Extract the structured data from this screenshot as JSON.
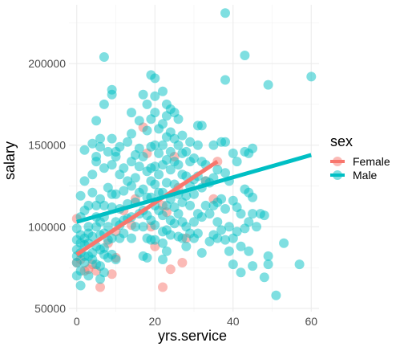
{
  "chart_data": {
    "type": "scatter",
    "title": "",
    "xlabel": "yrs.service",
    "ylabel": "salary",
    "xlim": [
      -2,
      62
    ],
    "ylim": [
      48000,
      236000
    ],
    "x_ticks": [
      0,
      20,
      40,
      60
    ],
    "y_ticks": [
      50000,
      100000,
      150000,
      200000
    ],
    "y_tick_labels": [
      "50000",
      "100000",
      "150000",
      "200000"
    ],
    "x_tick_labels": [
      "0",
      "20",
      "40",
      "60"
    ],
    "grid": true,
    "theme": "minimal",
    "legend": {
      "title": "sex",
      "position": "right",
      "entries": [
        "Female",
        "Male"
      ]
    },
    "colors": {
      "Female": "#F8766D",
      "Male": "#00BFC4"
    },
    "point_opacity": 0.5,
    "series": [
      {
        "name": "Female",
        "points": [
          [
            0,
            105000
          ],
          [
            0,
            78000
          ],
          [
            1,
            80000
          ],
          [
            2,
            73000
          ],
          [
            3,
            74000
          ],
          [
            4,
            77000
          ],
          [
            5,
            73000
          ],
          [
            6,
            63000
          ],
          [
            8,
            90000
          ],
          [
            9,
            71000
          ],
          [
            10,
            97000
          ],
          [
            10,
            81000
          ],
          [
            12,
            110000
          ],
          [
            14,
            101000
          ],
          [
            15,
            117000
          ],
          [
            17,
            161000
          ],
          [
            18,
            145000
          ],
          [
            19,
            100000
          ],
          [
            20,
            88000
          ],
          [
            22,
            63000
          ],
          [
            22,
            113000
          ],
          [
            23,
            109000
          ],
          [
            24,
            74000
          ],
          [
            25,
            143000
          ],
          [
            26,
            124000
          ],
          [
            27,
            78000
          ],
          [
            28,
            93000
          ],
          [
            33,
            128000
          ],
          [
            35,
            117000
          ],
          [
            36,
            140000
          ]
        ],
        "fit": {
          "x": [
            0,
            36
          ],
          "y": [
            83000,
            140000
          ]
        }
      },
      {
        "name": "Male",
        "points": [
          [
            0,
            78000
          ],
          [
            0,
            86000
          ],
          [
            0,
            92000
          ],
          [
            0,
            99000
          ],
          [
            0,
            82000
          ],
          [
            0,
            70000
          ],
          [
            1,
            84000
          ],
          [
            1,
            64000
          ],
          [
            1,
            119000
          ],
          [
            1,
            95000
          ],
          [
            1,
            106000
          ],
          [
            1,
            73000
          ],
          [
            1,
            90000
          ],
          [
            2,
            147000
          ],
          [
            2,
            110000
          ],
          [
            2,
            89000
          ],
          [
            2,
            78000
          ],
          [
            2,
            128000
          ],
          [
            2,
            93000
          ],
          [
            2,
            82000
          ],
          [
            3,
            100000
          ],
          [
            3,
            70000
          ],
          [
            3,
            82000
          ],
          [
            3,
            90000
          ],
          [
            3,
            113000
          ],
          [
            3,
            96000
          ],
          [
            4,
            151000
          ],
          [
            4,
            132000
          ],
          [
            4,
            121000
          ],
          [
            4,
            94000
          ],
          [
            4,
            84000
          ],
          [
            4,
            80000
          ],
          [
            5,
            165000
          ],
          [
            5,
            143000
          ],
          [
            5,
            140000
          ],
          [
            5,
            113000
          ],
          [
            5,
            100000
          ],
          [
            5,
            77000
          ],
          [
            5,
            88000
          ],
          [
            5,
            106000
          ],
          [
            6,
            154000
          ],
          [
            6,
            149000
          ],
          [
            6,
            117000
          ],
          [
            6,
            103000
          ],
          [
            6,
            95000
          ],
          [
            6,
            86000
          ],
          [
            6,
            68000
          ],
          [
            6,
            76000
          ],
          [
            7,
            204000
          ],
          [
            7,
            175000
          ],
          [
            7,
            136000
          ],
          [
            7,
            113000
          ],
          [
            7,
            96000
          ],
          [
            7,
            87000
          ],
          [
            7,
            72000
          ],
          [
            7,
            83000
          ],
          [
            7,
            106000
          ],
          [
            8,
            146000
          ],
          [
            8,
            124000
          ],
          [
            8,
            100000
          ],
          [
            8,
            92000
          ],
          [
            8,
            81000
          ],
          [
            9,
            184000
          ],
          [
            9,
            181000
          ],
          [
            9,
            154000
          ],
          [
            9,
            138000
          ],
          [
            9,
            120000
          ],
          [
            9,
            112000
          ],
          [
            9,
            93000
          ],
          [
            9,
            83000
          ],
          [
            10,
            143000
          ],
          [
            10,
            146000
          ],
          [
            10,
            120000
          ],
          [
            10,
            103000
          ],
          [
            10,
            80000
          ],
          [
            11,
            149000
          ],
          [
            11,
            132000
          ],
          [
            11,
            111000
          ],
          [
            11,
            101000
          ],
          [
            11,
            93000
          ],
          [
            12,
            136000
          ],
          [
            12,
            122000
          ],
          [
            12,
            104000
          ],
          [
            12,
            96000
          ],
          [
            13,
            152000
          ],
          [
            13,
            128000
          ],
          [
            13,
            114000
          ],
          [
            13,
            105000
          ],
          [
            14,
            170000
          ],
          [
            14,
            157000
          ],
          [
            14,
            140000
          ],
          [
            14,
            125000
          ],
          [
            14,
            106000
          ],
          [
            14,
            93000
          ],
          [
            15,
            144000
          ],
          [
            15,
            130000
          ],
          [
            15,
            115000
          ],
          [
            15,
            100000
          ],
          [
            16,
            165000
          ],
          [
            16,
            148000
          ],
          [
            16,
            137000
          ],
          [
            16,
            121000
          ],
          [
            16,
            108000
          ],
          [
            17,
            181000
          ],
          [
            17,
            143000
          ],
          [
            17,
            123000
          ],
          [
            17,
            110000
          ],
          [
            17,
            100000
          ],
          [
            17,
            82000
          ],
          [
            18,
            175000
          ],
          [
            18,
            159000
          ],
          [
            18,
            134000
          ],
          [
            18,
            118000
          ],
          [
            18,
            107000
          ],
          [
            18,
            93000
          ],
          [
            18,
            81000
          ],
          [
            19,
            193000
          ],
          [
            19,
            166000
          ],
          [
            19,
            149000
          ],
          [
            19,
            136000
          ],
          [
            19,
            128000
          ],
          [
            19,
            118000
          ],
          [
            19,
            104000
          ],
          [
            19,
            92000
          ],
          [
            20,
            191000
          ],
          [
            20,
            180000
          ],
          [
            20,
            170000
          ],
          [
            20,
            150000
          ],
          [
            20,
            137000
          ],
          [
            20,
            126000
          ],
          [
            20,
            113000
          ],
          [
            20,
            101000
          ],
          [
            20,
            92000
          ],
          [
            21,
            160000
          ],
          [
            21,
            145000
          ],
          [
            21,
            132000
          ],
          [
            21,
            121000
          ],
          [
            21,
            110000
          ],
          [
            22,
            183000
          ],
          [
            22,
            163000
          ],
          [
            22,
            150000
          ],
          [
            22,
            138000
          ],
          [
            22,
            121000
          ],
          [
            22,
            107000
          ],
          [
            22,
            97000
          ],
          [
            22,
            90000
          ],
          [
            22,
            80000
          ],
          [
            23,
            175000
          ],
          [
            23,
            168000
          ],
          [
            23,
            155000
          ],
          [
            23,
            141000
          ],
          [
            23,
            127000
          ],
          [
            23,
            113000
          ],
          [
            23,
            98000
          ],
          [
            23,
            85000
          ],
          [
            24,
            172000
          ],
          [
            24,
            158000
          ],
          [
            24,
            146000
          ],
          [
            24,
            135000
          ],
          [
            24,
            117000
          ],
          [
            24,
            104000
          ],
          [
            24,
            95000
          ],
          [
            25,
            170000
          ],
          [
            25,
            154000
          ],
          [
            25,
            140000
          ],
          [
            25,
            126000
          ],
          [
            25,
            112000
          ],
          [
            25,
            102000
          ],
          [
            26,
            166000
          ],
          [
            26,
            150000
          ],
          [
            26,
            138000
          ],
          [
            26,
            120000
          ],
          [
            26,
            108000
          ],
          [
            26,
            94000
          ],
          [
            27,
            156000
          ],
          [
            27,
            145000
          ],
          [
            27,
            132000
          ],
          [
            27,
            115000
          ],
          [
            27,
            103000
          ],
          [
            27,
            93000
          ],
          [
            28,
            146000
          ],
          [
            28,
            131000
          ],
          [
            28,
            119000
          ],
          [
            28,
            100000
          ],
          [
            28,
            88000
          ],
          [
            29,
            152000
          ],
          [
            29,
            140000
          ],
          [
            29,
            125000
          ],
          [
            29,
            113000
          ],
          [
            29,
            96000
          ],
          [
            30,
            142000
          ],
          [
            30,
            129000
          ],
          [
            30,
            120000
          ],
          [
            30,
            103000
          ],
          [
            30,
            93000
          ],
          [
            31,
            162000
          ],
          [
            31,
            150000
          ],
          [
            31,
            131000
          ],
          [
            31,
            108000
          ],
          [
            31,
            96000
          ],
          [
            32,
            162000
          ],
          [
            32,
            140000
          ],
          [
            32,
            124000
          ],
          [
            32,
            106000
          ],
          [
            32,
            84000
          ],
          [
            33,
            138000
          ],
          [
            33,
            128000
          ],
          [
            33,
            113000
          ],
          [
            34,
            127000
          ],
          [
            34,
            108000
          ],
          [
            34,
            91000
          ],
          [
            35,
            150000
          ],
          [
            35,
            130000
          ],
          [
            35,
            113000
          ],
          [
            35,
            95000
          ],
          [
            36,
            135000
          ],
          [
            36,
            115000
          ],
          [
            36,
            103000
          ],
          [
            36,
            93000
          ],
          [
            37,
            152000
          ],
          [
            37,
            117000
          ],
          [
            37,
            98000
          ],
          [
            38,
            231000
          ],
          [
            38,
            190000
          ],
          [
            38,
            152000
          ],
          [
            38,
            133000
          ],
          [
            38,
            111000
          ],
          [
            38,
            92000
          ],
          [
            39,
            128000
          ],
          [
            39,
            100000
          ],
          [
            39,
            85000
          ],
          [
            40,
            145000
          ],
          [
            40,
            116000
          ],
          [
            40,
            93000
          ],
          [
            40,
            77000
          ],
          [
            41,
            140000
          ],
          [
            41,
            112000
          ],
          [
            41,
            97000
          ],
          [
            42,
            108000
          ],
          [
            42,
            88000
          ],
          [
            42,
            72000
          ],
          [
            43,
            205000
          ],
          [
            43,
            146000
          ],
          [
            43,
            123000
          ],
          [
            43,
            99000
          ],
          [
            44,
            145000
          ],
          [
            44,
            121000
          ],
          [
            44,
            103000
          ],
          [
            44,
            85000
          ],
          [
            45,
            148000
          ],
          [
            45,
            118000
          ],
          [
            45,
            108000
          ],
          [
            45,
            76000
          ],
          [
            46,
            100000
          ],
          [
            47,
            108000
          ],
          [
            48,
            69000
          ],
          [
            48,
            107000
          ],
          [
            49,
            187000
          ],
          [
            49,
            82000
          ],
          [
            49,
            77000
          ],
          [
            51,
            58000
          ],
          [
            53,
            90000
          ],
          [
            57,
            77000
          ],
          [
            60,
            192000
          ]
        ],
        "fit": {
          "x": [
            0,
            60
          ],
          "y": [
            103000,
            144000
          ]
        }
      }
    ]
  }
}
